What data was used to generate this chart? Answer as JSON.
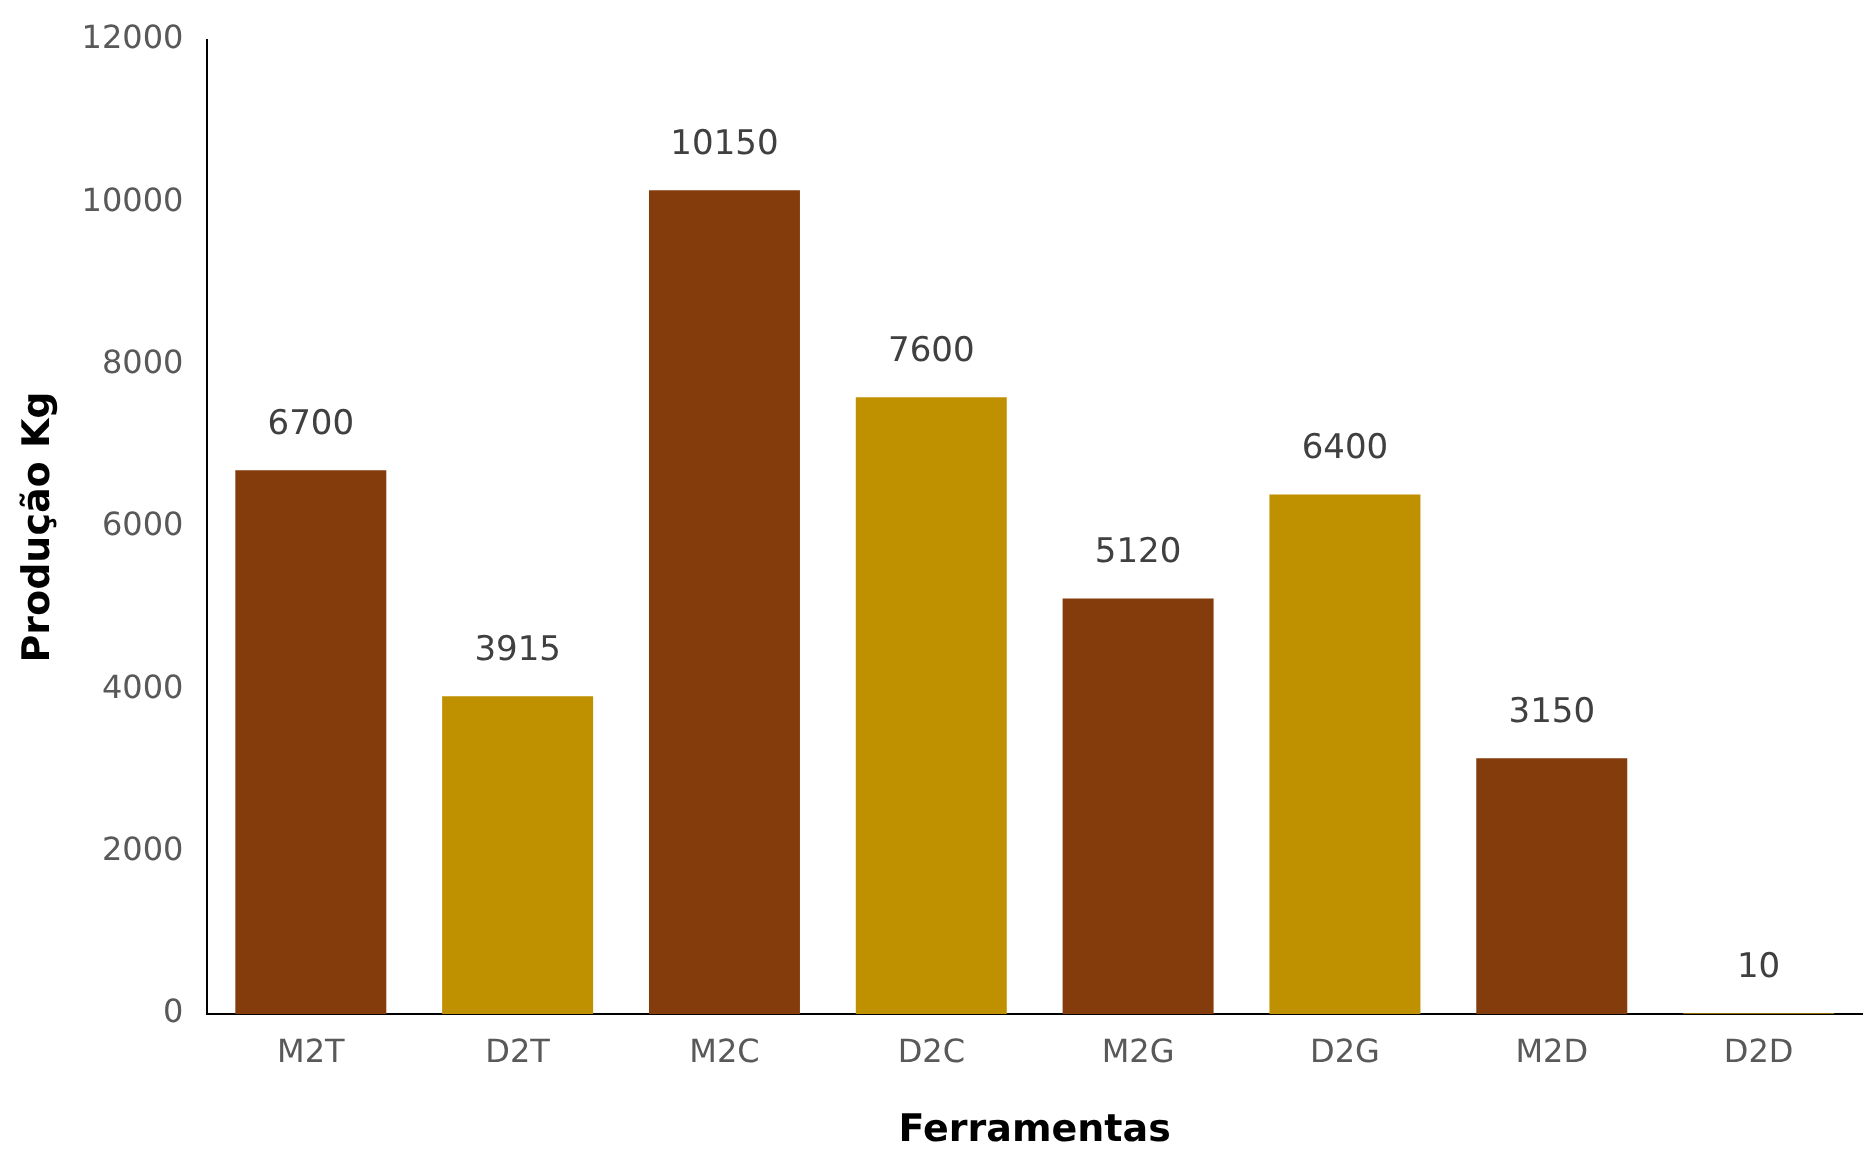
{
  "chart_data": {
    "type": "bar",
    "xlabel": "Ferramentas",
    "ylabel": "Produção Kg",
    "categories": [
      "M2T",
      "D2T",
      "M2C",
      "D2C",
      "M2G",
      "D2G",
      "M2D",
      "D2D"
    ],
    "values": [
      6700,
      3915,
      10150,
      7600,
      5120,
      6400,
      3150,
      10
    ],
    "colors": [
      "#843c0c",
      "#bf9000",
      "#843c0c",
      "#bf9000",
      "#843c0c",
      "#bf9000",
      "#843c0c",
      "#bf9000"
    ],
    "ylim": [
      0,
      12000
    ],
    "yticks": [
      0,
      2000,
      4000,
      6000,
      8000,
      10000,
      12000
    ],
    "grid": false,
    "legend": false,
    "data_labels": true
  }
}
